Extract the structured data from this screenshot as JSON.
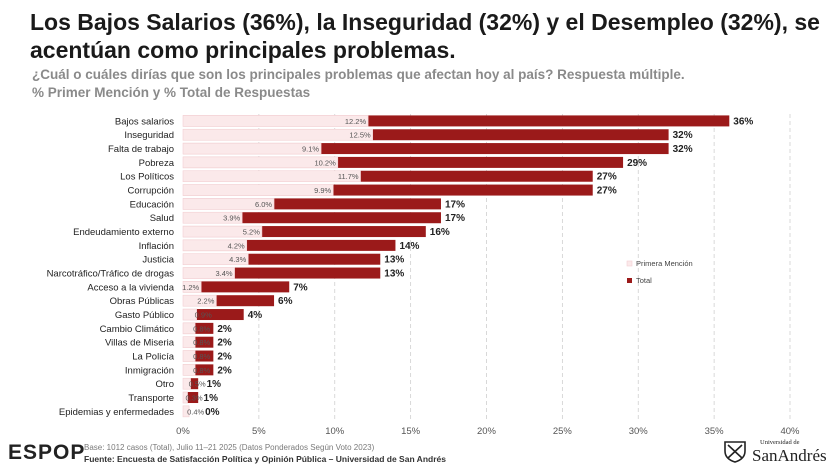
{
  "header": {
    "title": "Los Bajos Salarios (36%), la Inseguridad (32%) y el Desempleo (32%), se acentúan como principales problemas.",
    "subtitle_line1": "¿Cuál o cuáles dirías que son los principales problemas que afectan hoy al país? Respuesta múltiple.",
    "subtitle_line2": "% Primer Mención y % Total de Respuestas"
  },
  "chart_data": {
    "type": "bar",
    "orientation": "horizontal",
    "categories": [
      "Bajos salarios",
      "Inseguridad",
      "Falta de trabajo",
      "Pobreza",
      "Los Políticos",
      "Corrupción",
      "Educación",
      "Salud",
      "Endeudamiento externo",
      "Inflación",
      "Justicia",
      "Narcotráfico/Tráfico de drogas",
      "Acceso a la vivienda",
      "Obras Públicas",
      "Gasto Público",
      "Cambio Climático",
      "Villas de Miseria",
      "La Policía",
      "Inmigración",
      "Otro",
      "Transporte",
      "Epidemias y enfermedades"
    ],
    "series": [
      {
        "name": "Primera Mención",
        "color": "#fbe9ea",
        "values": [
          12.2,
          12.5,
          9.1,
          10.2,
          11.7,
          9.9,
          6.0,
          3.9,
          5.2,
          4.2,
          4.3,
          3.4,
          1.2,
          2.2,
          0.9,
          0.8,
          0.8,
          0.8,
          0.8,
          0.5,
          0.3,
          0.4
        ],
        "labels": [
          "12.2%",
          "12.5%",
          "9.1%",
          "10.2%",
          "11.7%",
          "9.9%",
          "6.0%",
          "3.9%",
          "5.2%",
          "4.2%",
          "4.3%",
          "3.4%",
          "1.2%",
          "2.2%",
          "0.9%",
          "0.8%",
          "0.8%",
          "0.8%",
          "0.8%",
          "0.5%",
          "0.3%",
          "0.4%"
        ]
      },
      {
        "name": "Total",
        "color": "#9b1a1a",
        "values": [
          36,
          32,
          32,
          29,
          27,
          27,
          17,
          17,
          16,
          14,
          13,
          13,
          7,
          6,
          4,
          2,
          2,
          2,
          2,
          1,
          1,
          0
        ],
        "labels": [
          "36%",
          "32%",
          "32%",
          "29%",
          "27%",
          "27%",
          "17%",
          "17%",
          "16%",
          "14%",
          "13%",
          "13%",
          "7%",
          "6%",
          "4%",
          "2%",
          "2%",
          "2%",
          "2%",
          "1%",
          "1%",
          "0%"
        ]
      }
    ],
    "xlim": [
      0,
      40
    ],
    "xticks": [
      "0%",
      "5%",
      "10%",
      "15%",
      "20%",
      "25%",
      "30%",
      "35%",
      "40%"
    ],
    "grid": "vertical dashed",
    "legend_placement": "right"
  },
  "footer": {
    "note": "Base: 1012 casos (Total), Julio 11–21 2025 (Datos Ponderados Según Voto 2023)",
    "source": "Fuente: Encuesta de Satisfacción Política y Opinión Pública – Universidad de San Andrés"
  },
  "branding": {
    "espop_logo": "ESPOP",
    "university_small": "Universidad de",
    "university_name": "SanAndrés"
  }
}
